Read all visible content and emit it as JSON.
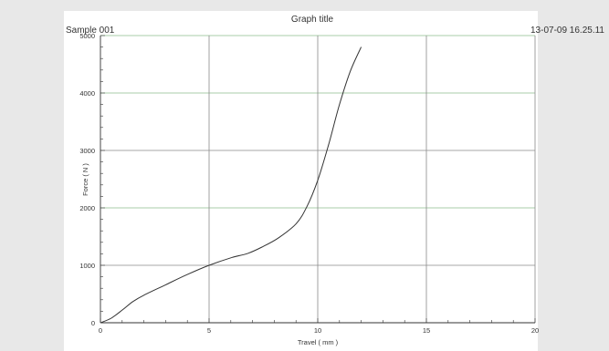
{
  "header": {
    "sample": "Sample 001",
    "title": "Graph title",
    "timestamp": "13-07-09  16.25.11"
  },
  "colors": {
    "grid_green": "#8dbb8d",
    "grid_gray": "#8a8a8a",
    "line": "#333333",
    "background": "#e8e8e8",
    "plot_background": "#ffffff"
  },
  "chart_data": {
    "type": "line",
    "title": "Graph title",
    "xlabel": "Travel ( mm )",
    "ylabel": "Force ( N )",
    "xlim": [
      0,
      20
    ],
    "ylim": [
      0,
      5000
    ],
    "x_ticks": [
      0,
      5,
      10,
      15,
      20
    ],
    "y_ticks": [
      0,
      1000,
      2000,
      3000,
      4000,
      5000
    ],
    "grid": true,
    "series": [
      {
        "x": [
          0,
          0.5,
          1,
          1.5,
          2,
          3,
          4,
          5,
          6,
          6.8,
          7.5,
          8.2,
          9,
          9.5,
          10,
          10.5,
          11,
          11.5,
          12
        ],
        "y": [
          0,
          80,
          220,
          370,
          480,
          660,
          840,
          1000,
          1130,
          1210,
          1330,
          1480,
          1720,
          2020,
          2480,
          3100,
          3800,
          4380,
          4800
        ]
      }
    ]
  }
}
